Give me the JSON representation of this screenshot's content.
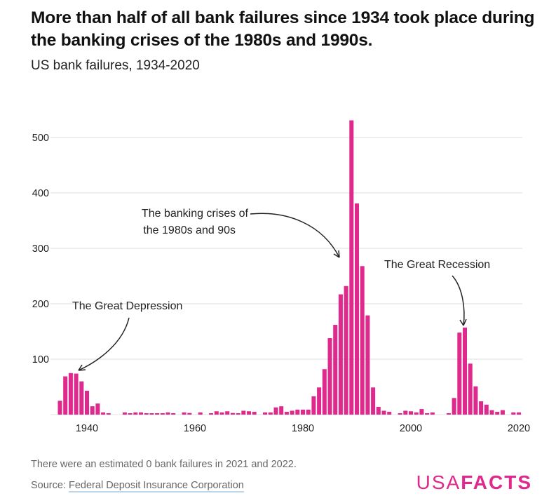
{
  "title": "More than half of all bank failures since 1934 took place during the banking crises of the 1980s and 1990s.",
  "subtitle": "US bank failures, 1934-2020",
  "note": "There were an estimated 0 bank failures in 2021 and 2022.",
  "source_label": "Source: ",
  "source_link": "Federal Deposit Insurance Corporation",
  "logo": {
    "light": "USA",
    "bold": "FACTS"
  },
  "colors": {
    "bar": "#e0298c",
    "grid": "#dddddd"
  },
  "chart_data": {
    "type": "bar",
    "title": "US bank failures, 1934-2020",
    "xlim": [
      1934,
      2020
    ],
    "ylim": [
      0,
      540
    ],
    "x_ticks": [
      1940,
      1960,
      1980,
      2000,
      2020
    ],
    "y_ticks": [
      100,
      200,
      300,
      400,
      500
    ],
    "grid": true,
    "x": [
      1935,
      1936,
      1937,
      1938,
      1939,
      1940,
      1941,
      1942,
      1943,
      1944,
      1945,
      1946,
      1947,
      1948,
      1949,
      1950,
      1951,
      1952,
      1953,
      1954,
      1955,
      1956,
      1957,
      1958,
      1959,
      1960,
      1961,
      1962,
      1963,
      1964,
      1965,
      1966,
      1967,
      1968,
      1969,
      1970,
      1971,
      1972,
      1973,
      1974,
      1975,
      1976,
      1977,
      1978,
      1979,
      1980,
      1981,
      1982,
      1983,
      1984,
      1985,
      1986,
      1987,
      1988,
      1989,
      1990,
      1991,
      1992,
      1993,
      1994,
      1995,
      1996,
      1997,
      1998,
      1999,
      2000,
      2001,
      2002,
      2003,
      2004,
      2005,
      2006,
      2007,
      2008,
      2009,
      2010,
      2011,
      2012,
      2013,
      2014,
      2015,
      2016,
      2017,
      2018,
      2019,
      2020
    ],
    "values": [
      25,
      69,
      75,
      74,
      60,
      43,
      15,
      20,
      4,
      1,
      0,
      0,
      4,
      2,
      4,
      4,
      2,
      2,
      2,
      2,
      4,
      2,
      0,
      4,
      3,
      0,
      4,
      0,
      1,
      6,
      4,
      6,
      3,
      2,
      7,
      6,
      5,
      0,
      4,
      4,
      13,
      15,
      5,
      7,
      9,
      9,
      9,
      33,
      49,
      82,
      138,
      162,
      217,
      232,
      531,
      381,
      268,
      179,
      49,
      14,
      7,
      5,
      0,
      2,
      7,
      6,
      4,
      10,
      2,
      4,
      0,
      0,
      2,
      30,
      148,
      157,
      92,
      51,
      24,
      18,
      8,
      5,
      8,
      0,
      4,
      4
    ],
    "annotations": [
      {
        "text": [
          "The Great Depression"
        ],
        "year": 1937
      },
      {
        "text": [
          "The banking crises of",
          "the 1980s and 90s"
        ],
        "year": 1987
      },
      {
        "text": [
          "The Great Recession"
        ],
        "year": 2010
      }
    ]
  }
}
